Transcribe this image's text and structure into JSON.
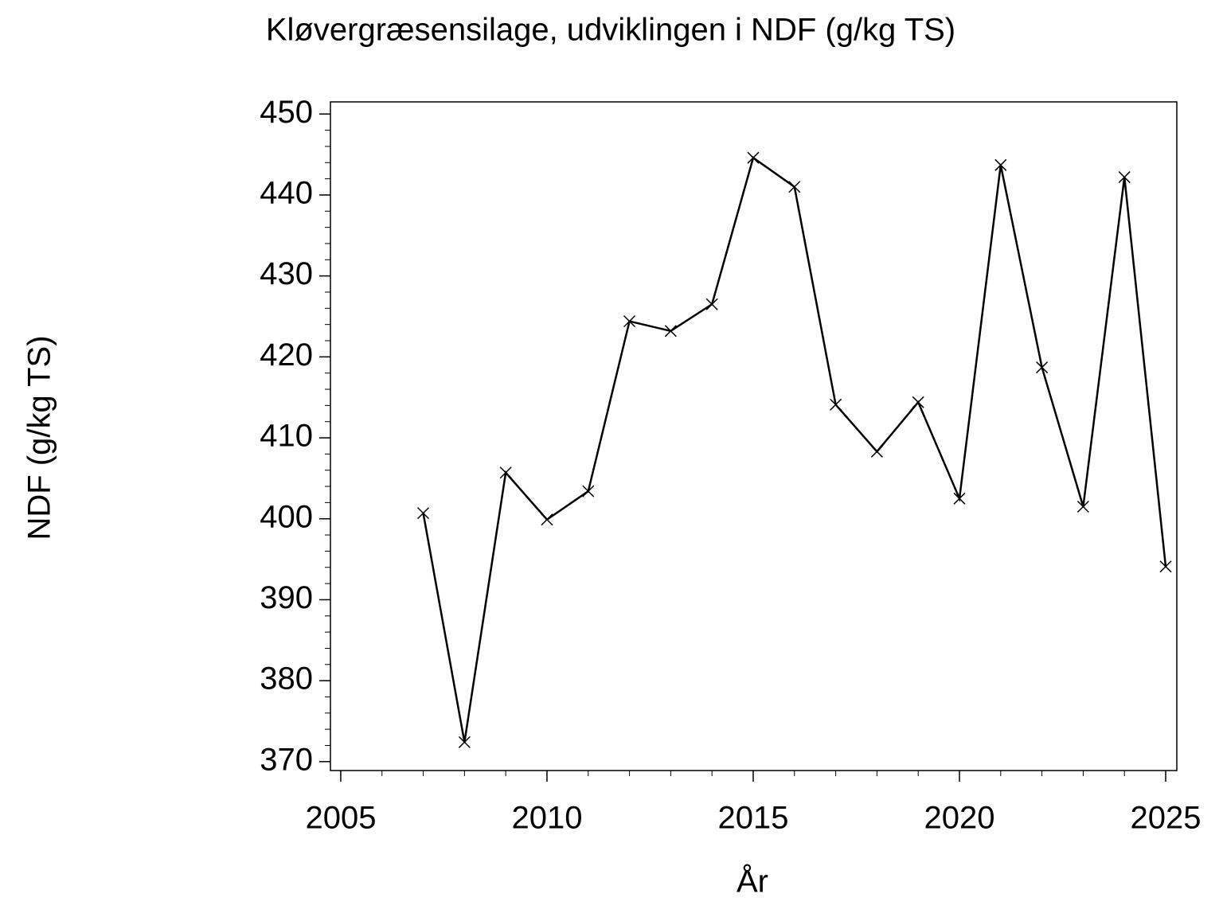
{
  "chart_data": {
    "type": "line",
    "title": "Kløvergræsensilage,  udviklingen  i  NDF  (g/kg  TS)",
    "xlabel": "År",
    "ylabel": "NDF  (g/kg  TS)",
    "x": [
      2007,
      2008,
      2009,
      2010,
      2011,
      2012,
      2013,
      2014,
      2015,
      2016,
      2017,
      2018,
      2019,
      2020,
      2021,
      2022,
      2023,
      2024,
      2025
    ],
    "series": [
      {
        "name": "NDF",
        "color": "#000000",
        "values": [
          400.7,
          372.4,
          405.7,
          399.9,
          403.4,
          424.4,
          423.2,
          426.5,
          444.6,
          441.0,
          414.1,
          408.3,
          414.4,
          402.5,
          443.7,
          418.7,
          401.5,
          442.2,
          394.1
        ]
      }
    ],
    "xlim": [
      2004.75,
      2025.27
    ],
    "ylim": [
      368.9,
      451.5
    ],
    "xticks": [
      2005,
      2010,
      2015,
      2020,
      2025
    ],
    "yticks": [
      370,
      380,
      390,
      400,
      410,
      420,
      430,
      440,
      450
    ],
    "xminor_step": 1,
    "yminor_step": 2,
    "marker": "x",
    "grid": false
  }
}
